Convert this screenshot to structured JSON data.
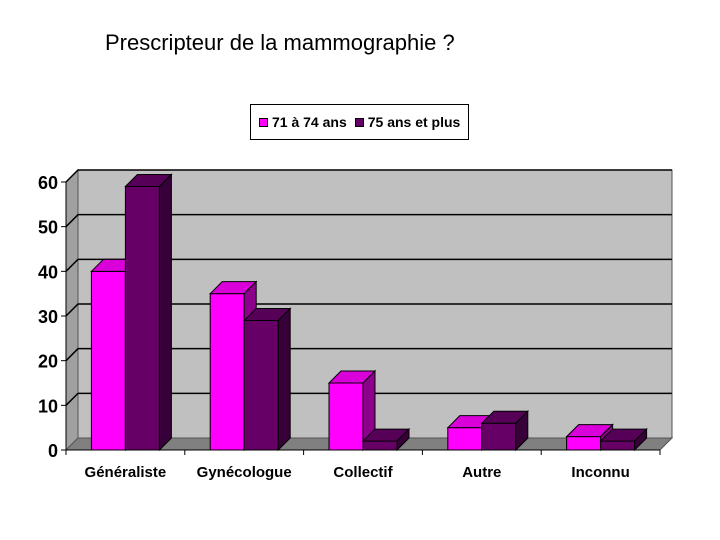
{
  "page": {
    "title": "Prescripteur de la mammographie ?"
  },
  "chart_data": {
    "type": "bar",
    "title": "",
    "xlabel": "",
    "ylabel": "",
    "categories": [
      "Généraliste",
      "Gynécologue",
      "Collectif",
      "Autre",
      "Inconnu"
    ],
    "series": [
      {
        "name": "71 à 74 ans",
        "values": [
          40,
          35,
          15,
          5,
          3
        ],
        "color": "#ff00ff"
      },
      {
        "name": "75 ans et plus",
        "values": [
          59,
          29,
          2,
          6,
          2
        ],
        "color": "#660066"
      }
    ],
    "ylim": [
      0,
      60
    ],
    "yticks": [
      0,
      10,
      20,
      30,
      40,
      50,
      60
    ],
    "grid": true,
    "legend_position": "top",
    "plot_background": "#c0c0c0",
    "three_d": true
  }
}
